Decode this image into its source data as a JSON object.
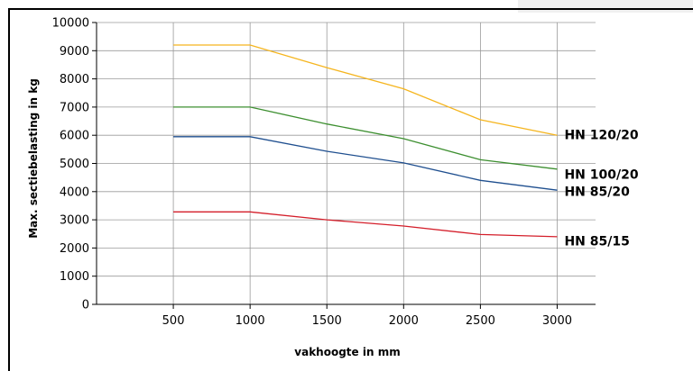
{
  "chart_data": {
    "type": "line",
    "xlabel": "vakhoogte in mm",
    "ylabel": "Max. sectiebelasting in kg",
    "x": [
      500,
      1000,
      1500,
      2000,
      2500,
      3000
    ],
    "xlim": [
      0,
      3250
    ],
    "ylim": [
      0,
      10000
    ],
    "x_ticks": [
      500,
      1000,
      1500,
      2000,
      2500,
      3000
    ],
    "y_ticks": [
      0,
      1000,
      2000,
      3000,
      4000,
      5000,
      6000,
      7000,
      8000,
      9000,
      10000
    ],
    "grid": "on",
    "legend": "series labels at right end of lines",
    "series": [
      {
        "name": "HN 120/20",
        "color": "#f5b51e",
        "values": [
          9200,
          9200,
          8400,
          7650,
          6550,
          6000
        ]
      },
      {
        "name": "HN 100/20",
        "color": "#3d8f30",
        "values": [
          7000,
          7000,
          6400,
          5880,
          5130,
          4800
        ]
      },
      {
        "name": "HN 85/20",
        "color": "#1f4f8f",
        "values": [
          5950,
          5950,
          5430,
          5020,
          4400,
          4050
        ]
      },
      {
        "name": "HN 85/15",
        "color": "#d41e2a",
        "values": [
          3280,
          3280,
          3000,
          2780,
          2480,
          2400
        ]
      }
    ]
  }
}
